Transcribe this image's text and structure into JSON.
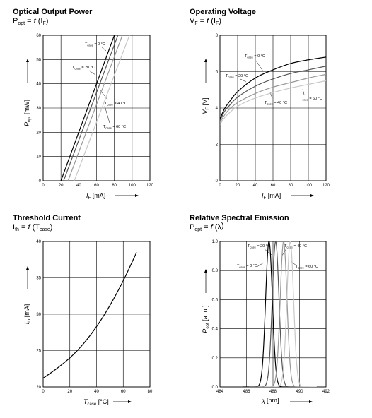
{
  "chart_data": [
    {
      "type": "line",
      "title": "Optical Output Power",
      "subtitle": "Popt = f (IF)",
      "xlabel": "IF [mA]",
      "ylabel": "Popt [mW]",
      "xlim": [
        0,
        120
      ],
      "ylim": [
        0,
        60
      ],
      "xticks": [
        0,
        20,
        40,
        60,
        80,
        100,
        120
      ],
      "yticks": [
        0,
        10,
        20,
        30,
        40,
        50,
        60
      ],
      "grid": true,
      "series": [
        {
          "name": "Tcase = 0 °C",
          "color": "#000000",
          "x": [
            20,
            80
          ],
          "y": [
            0,
            60
          ]
        },
        {
          "name": "Tcase = 20 °C",
          "color": "#555555",
          "x": [
            23,
            84
          ],
          "y": [
            0,
            60
          ]
        },
        {
          "name": "Tcase = 40 °C",
          "color": "#999999",
          "x": [
            28,
            89
          ],
          "y": [
            0,
            60
          ]
        },
        {
          "name": "Tcase = 60 °C",
          "color": "#c8c8c8",
          "x": [
            35,
            97
          ],
          "y": [
            0,
            60
          ]
        }
      ],
      "annotations": [
        "Tcase = 0 °C",
        "Tcase = 20 °C",
        "Tcase = 40 °C",
        "Tcase = 60 °C"
      ]
    },
    {
      "type": "line",
      "title": "Operating Voltage",
      "subtitle": "VF = f (IF)",
      "xlabel": "IF [mA]",
      "ylabel": "VF [V]",
      "xlim": [
        0,
        120
      ],
      "ylim": [
        0,
        8
      ],
      "xticks": [
        0,
        20,
        40,
        60,
        80,
        100,
        120
      ],
      "yticks": [
        0,
        2,
        4,
        6,
        8
      ],
      "grid": true,
      "series": [
        {
          "name": "Tcase = 0 °C",
          "color": "#000000",
          "x": [
            0,
            5,
            10,
            20,
            40,
            60,
            80,
            100,
            120
          ],
          "y": [
            3.4,
            3.95,
            4.3,
            4.9,
            5.65,
            6.1,
            6.45,
            6.65,
            6.8
          ]
        },
        {
          "name": "Tcase = 20 °C",
          "color": "#555555",
          "x": [
            0,
            5,
            10,
            20,
            40,
            60,
            80,
            100,
            120
          ],
          "y": [
            3.3,
            3.8,
            4.1,
            4.6,
            5.2,
            5.6,
            5.9,
            6.1,
            6.3
          ]
        },
        {
          "name": "Tcase = 40 °C",
          "color": "#999999",
          "x": [
            0,
            5,
            10,
            20,
            40,
            60,
            80,
            100,
            120
          ],
          "y": [
            3.2,
            3.6,
            3.9,
            4.3,
            4.8,
            5.15,
            5.4,
            5.65,
            5.85
          ]
        },
        {
          "name": "Tcase = 60 °C",
          "color": "#c8c8c8",
          "x": [
            0,
            5,
            10,
            20,
            40,
            60,
            80,
            100,
            120
          ],
          "y": [
            3.1,
            3.45,
            3.7,
            4.1,
            4.55,
            4.85,
            5.1,
            5.3,
            5.5
          ]
        }
      ],
      "annotations": [
        "Tcase = 0 °C",
        "Tcase = 20 °C",
        "Tcase = 40 °C",
        "Tcase = 60 °C"
      ]
    },
    {
      "type": "line",
      "title": "Threshold Current",
      "subtitle": "Ith = f (Tcase)",
      "xlabel": "Tcase [°C]",
      "ylabel": "Ith [mA]",
      "xlim": [
        0,
        80
      ],
      "ylim": [
        20,
        40
      ],
      "xticks": [
        0,
        20,
        40,
        60,
        80
      ],
      "yticks": [
        20,
        25,
        30,
        35,
        40
      ],
      "grid": true,
      "series": [
        {
          "name": "",
          "color": "#000000",
          "x": [
            0,
            10,
            20,
            30,
            40,
            50,
            60,
            70
          ],
          "y": [
            21.2,
            22.5,
            24.0,
            25.9,
            28.3,
            31.2,
            34.6,
            38.5
          ]
        }
      ]
    },
    {
      "type": "line",
      "title": "Relative Spectral Emission",
      "subtitle": "Popt = f (λ)",
      "xlabel": "λ [nm]",
      "ylabel": "Popt [a. u.]",
      "xlim": [
        484,
        492
      ],
      "ylim": [
        0,
        1.0
      ],
      "xticks": [
        484,
        486,
        488,
        490,
        492
      ],
      "yticks": [
        0.0,
        0.2,
        0.4,
        0.6,
        0.8,
        1.0
      ],
      "grid": true,
      "series": [
        {
          "name": "Tcase = 0 °C",
          "color": "#000000",
          "center": 487.7,
          "width": 0.6
        },
        {
          "name": "Tcase = 20 °C",
          "color": "#555555",
          "center": 488.2,
          "width": 0.6
        },
        {
          "name": "Tcase = 40 °C",
          "color": "#999999",
          "center": 488.8,
          "width": 0.6
        },
        {
          "name": "Tcase = 60 °C",
          "color": "#c8c8c8",
          "center": 489.3,
          "width": 0.6
        }
      ],
      "annotations": [
        "Tcase = 20 °C",
        "Tcase = 40 °C",
        "Tcase = 0 °C",
        "Tcase = 60 °C"
      ]
    }
  ],
  "text": {
    "p1": {
      "title": "Optical Output Power",
      "sub_a": "P",
      "sub_a_sub": "opt",
      "sub_b": " = ",
      "sub_f": "f",
      "sub_c": " (I",
      "sub_c_sub": "F",
      "sub_d": ")",
      "ylab_a": "P",
      "ylab_sub": "opt",
      "ylab_b": " [mW]",
      "xlab_a": "I",
      "xlab_sub": "F",
      "xlab_b": " [mA]",
      "ann": [
        {
          "a": "T",
          "s": "case",
          "b": " = 0 °C"
        },
        {
          "a": "T",
          "s": "case",
          "b": " = 20 °C"
        },
        {
          "a": "T",
          "s": "case",
          "b": " = 40 °C"
        },
        {
          "a": "T",
          "s": "case",
          "b": " = 60 °C"
        }
      ]
    },
    "p2": {
      "title": "Operating Voltage",
      "sub_a": "V",
      "sub_a_sub": "F",
      "sub_b": " = ",
      "sub_f": "f",
      "sub_c": " (I",
      "sub_c_sub": "F",
      "sub_d": ")",
      "ylab_a": "V",
      "ylab_sub": "F",
      "ylab_b": " [V]",
      "xlab_a": "I",
      "xlab_sub": "F",
      "xlab_b": " [mA]",
      "ann": [
        {
          "a": "T",
          "s": "case",
          "b": " = 0 °C"
        },
        {
          "a": "T",
          "s": "case",
          "b": " = 20 °C"
        },
        {
          "a": "T",
          "s": "case",
          "b": " = 40 °C"
        },
        {
          "a": "T",
          "s": "case",
          "b": " = 60 °C"
        }
      ]
    },
    "p3": {
      "title": "Threshold Current",
      "sub_a": "I",
      "sub_a_sub": "th",
      "sub_b": " = ",
      "sub_f": "f",
      "sub_c": " (T",
      "sub_c_sub": "case",
      "sub_d": ")",
      "ylab_a": "I",
      "ylab_sub": "th",
      "ylab_b": " [mA]",
      "xlab_a": "T",
      "xlab_sub": "case",
      "xlab_b": " [°C]"
    },
    "p4": {
      "title": "Relative Spectral Emission",
      "sub_a": "P",
      "sub_a_sub": "opt",
      "sub_b": " = ",
      "sub_f": "f",
      "sub_c": " (λ",
      "sub_c_sub": "",
      "sub_d": ")",
      "ylab_a": "P",
      "ylab_sub": "opt",
      "ylab_b": " [a. u.]",
      "xlab_a": "λ",
      "xlab_sub": "",
      "xlab_b": " [nm]",
      "ann": [
        {
          "a": "T",
          "s": "case",
          "b": " = 20 °C"
        },
        {
          "a": "T",
          "s": "case",
          "b": " = 40 °C"
        },
        {
          "a": "T",
          "s": "case",
          "b": " = 0 °C"
        },
        {
          "a": "T",
          "s": "case",
          "b": " = 60 °C"
        }
      ]
    }
  }
}
